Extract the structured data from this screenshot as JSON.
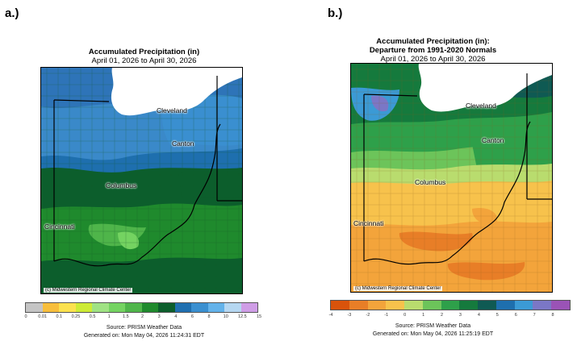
{
  "panels": [
    {
      "letter": "a.)",
      "title_bold": "Accumulated Precipitation (in)",
      "title_bold2": "",
      "subtitle": "April 01, 2026 to April 30, 2026",
      "cities": [
        "Cleveland",
        "Canton",
        "Columbus",
        "Cincinnati"
      ],
      "credit": "(c) Midwestern Regional Climate Center",
      "legend": {
        "ticks": [
          "0",
          "0.01",
          "0.1",
          "0.25",
          "0.5",
          "1",
          "1.5",
          "2",
          "3",
          "4",
          "6",
          "8",
          "10",
          "12.5",
          "15"
        ],
        "colors": [
          "#c4c4c4",
          "#f7be3c",
          "#fbe14e",
          "#cdeb35",
          "#9fe283",
          "#74d361",
          "#4fb54a",
          "#1f8a2d",
          "#0c5e2c",
          "#1f6fb0",
          "#3a8fd0",
          "#63b2ea",
          "#b5d7f1",
          "#cf9de6"
        ]
      },
      "source": "Source: PRISM Weather Data",
      "generated": "Generated on: Mon May 04, 2026 11:24:31 EDT"
    },
    {
      "letter": "b.)",
      "title_bold": "Accumulated Precipitation (in):",
      "title_bold2": "Departure from 1991-2020 Normals",
      "subtitle": "April 01, 2026 to April 30, 2026",
      "cities": [
        "Cleveland",
        "Canton",
        "Columbus",
        "Cincinnati"
      ],
      "credit": "(c) Midwestern Regional Climate Center",
      "legend": {
        "ticks": [
          "-4",
          "-3",
          "-2",
          "-1",
          "0",
          "1",
          "2",
          "3",
          "4",
          "5",
          "6",
          "7",
          "8"
        ],
        "colors": [
          "#d9530b",
          "#e87e27",
          "#f3a43b",
          "#f7c24c",
          "#b9dc6e",
          "#6cc45a",
          "#2ea04a",
          "#157a3d",
          "#0f5a53",
          "#1e6fae",
          "#3b9ad5",
          "#7b77c6",
          "#9a53b6"
        ]
      },
      "source": "Source: PRISM Weather Data",
      "generated": "Generated on: Mon May 04, 2026 11:25:19 EDT"
    }
  ]
}
